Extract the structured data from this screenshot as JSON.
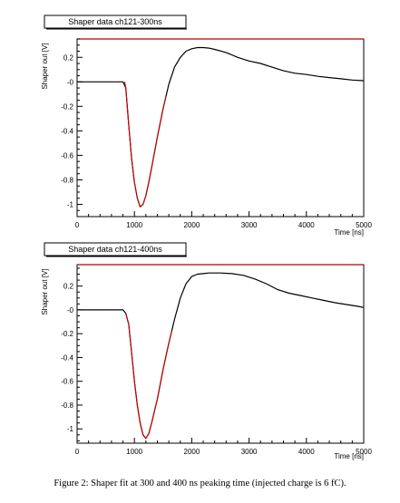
{
  "caption": "Figure 2: Shaper fit at 300 and 400 ns peaking time (injected charge is 6 fC).",
  "colors": {
    "data": "#000000",
    "fit": "#cc0000",
    "frame": "#000000",
    "top_edge": "#b00000"
  },
  "chart_data": [
    {
      "type": "line",
      "title": "Shaper data ch121-300ns",
      "xlabel": "Time [ns]",
      "ylabel": "Shaper out [V]",
      "xlim": [
        0,
        5000
      ],
      "ylim": [
        -1.1,
        0.35
      ],
      "xticks": [
        0,
        1000,
        2000,
        3000,
        4000,
        5000
      ],
      "xtick_labels": [
        "0",
        "1000",
        "2000",
        "3000",
        "4000",
        "5000"
      ],
      "yticks": [
        0.2,
        0,
        -0.2,
        -0.4,
        -0.6,
        -0.8,
        -1
      ],
      "ytick_labels": [
        "0.2",
        "-0",
        "-0.2",
        "-0.4",
        "-0.6",
        "-0.8",
        "-1"
      ],
      "grid": false,
      "series": [
        {
          "role": "data",
          "x": [
            0,
            400,
            700,
            800,
            850,
            900,
            950,
            1000,
            1050,
            1100,
            1150,
            1200,
            1250,
            1300,
            1400,
            1500,
            1600,
            1700,
            1800,
            1900,
            2000,
            2100,
            2200,
            2300,
            2400,
            2600,
            2800,
            3000,
            3200,
            3400,
            3600,
            3800,
            4000,
            4200,
            4400,
            4600,
            4800,
            5000
          ],
          "y": [
            0,
            0,
            0,
            0,
            -0.05,
            -0.35,
            -0.62,
            -0.82,
            -0.95,
            -1.02,
            -1.0,
            -0.93,
            -0.82,
            -0.7,
            -0.45,
            -0.22,
            -0.02,
            0.12,
            0.2,
            0.25,
            0.27,
            0.28,
            0.28,
            0.275,
            0.265,
            0.24,
            0.2,
            0.17,
            0.15,
            0.12,
            0.09,
            0.07,
            0.06,
            0.045,
            0.035,
            0.025,
            0.015,
            0.01
          ]
        },
        {
          "role": "fit",
          "x": [
            830,
            850,
            900,
            950,
            1000,
            1050,
            1100,
            1150,
            1200,
            1250,
            1300,
            1400,
            1500,
            1550
          ],
          "y": [
            0,
            -0.05,
            -0.35,
            -0.62,
            -0.82,
            -0.95,
            -1.02,
            -1.0,
            -0.93,
            -0.82,
            -0.7,
            -0.45,
            -0.22,
            -0.12
          ]
        }
      ]
    },
    {
      "type": "line",
      "title": "Shaper data ch121-400ns",
      "xlabel": "Time [ns]",
      "ylabel": "Shaper out [V]",
      "xlim": [
        0,
        5000
      ],
      "ylim": [
        -1.12,
        0.38
      ],
      "xticks": [
        0,
        1000,
        2000,
        3000,
        4000,
        5000
      ],
      "xtick_labels": [
        "0",
        "1000",
        "2000",
        "3000",
        "4000",
        "5000"
      ],
      "yticks": [
        0.2,
        0,
        -0.2,
        -0.4,
        -0.6,
        -0.8,
        -1
      ],
      "ytick_labels": [
        "0.2",
        "-0",
        "-0.2",
        "-0.4",
        "-0.6",
        "-0.8",
        "-1"
      ],
      "grid": false,
      "series": [
        {
          "role": "data",
          "x": [
            0,
            400,
            800,
            850,
            900,
            950,
            1000,
            1050,
            1100,
            1150,
            1200,
            1250,
            1300,
            1350,
            1400,
            1500,
            1600,
            1700,
            1800,
            1900,
            2000,
            2100,
            2200,
            2300,
            2500,
            2700,
            2900,
            3100,
            3300,
            3500,
            3700,
            3900,
            4100,
            4300,
            4500,
            4700,
            4900,
            5000
          ],
          "y": [
            0,
            0,
            0,
            -0.03,
            -0.12,
            -0.35,
            -0.6,
            -0.8,
            -0.95,
            -1.05,
            -1.08,
            -1.04,
            -0.95,
            -0.85,
            -0.75,
            -0.5,
            -0.28,
            -0.08,
            0.1,
            0.22,
            0.28,
            0.3,
            0.305,
            0.31,
            0.31,
            0.305,
            0.29,
            0.26,
            0.22,
            0.17,
            0.14,
            0.12,
            0.1,
            0.08,
            0.06,
            0.045,
            0.03,
            0.02
          ]
        },
        {
          "role": "fit",
          "x": [
            850,
            900,
            950,
            1000,
            1050,
            1100,
            1150,
            1200,
            1250,
            1300,
            1350,
            1400,
            1500,
            1600,
            1650
          ],
          "y": [
            -0.03,
            -0.12,
            -0.35,
            -0.6,
            -0.8,
            -0.95,
            -1.05,
            -1.08,
            -1.04,
            -0.95,
            -0.85,
            -0.75,
            -0.5,
            -0.28,
            -0.18
          ]
        }
      ]
    }
  ]
}
